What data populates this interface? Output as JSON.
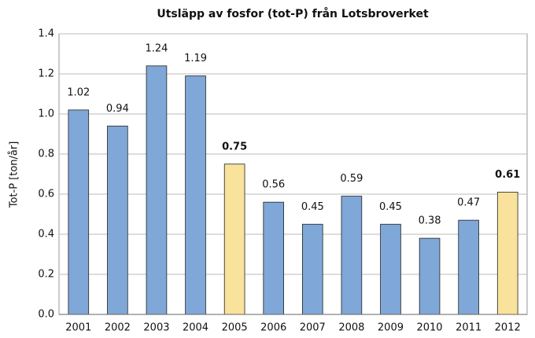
{
  "chart_data": {
    "type": "bar",
    "title": "Utsläpp av fosfor (tot-P) från Lotsbroverket",
    "ylabel": "Tot-P [ton/år]",
    "categories": [
      "2001",
      "2002",
      "2003",
      "2004",
      "2005",
      "2006",
      "2007",
      "2008",
      "2009",
      "2010",
      "2011",
      "2012"
    ],
    "values": [
      1.02,
      0.94,
      1.24,
      1.19,
      0.75,
      0.56,
      0.45,
      0.59,
      0.45,
      0.38,
      0.47,
      0.61
    ],
    "color": "#7fa7d7",
    "highlight_color": "#f8e29c",
    "highlight": [
      4,
      11
    ],
    "ylim": [
      0,
      1.4
    ],
    "yticks": [
      {
        "value": 0,
        "label": "0.0"
      },
      0.2,
      0.4,
      0.6,
      0.8,
      {
        "value": 1,
        "label": "1.0"
      },
      1.2,
      1.4
    ],
    "grid": true
  }
}
